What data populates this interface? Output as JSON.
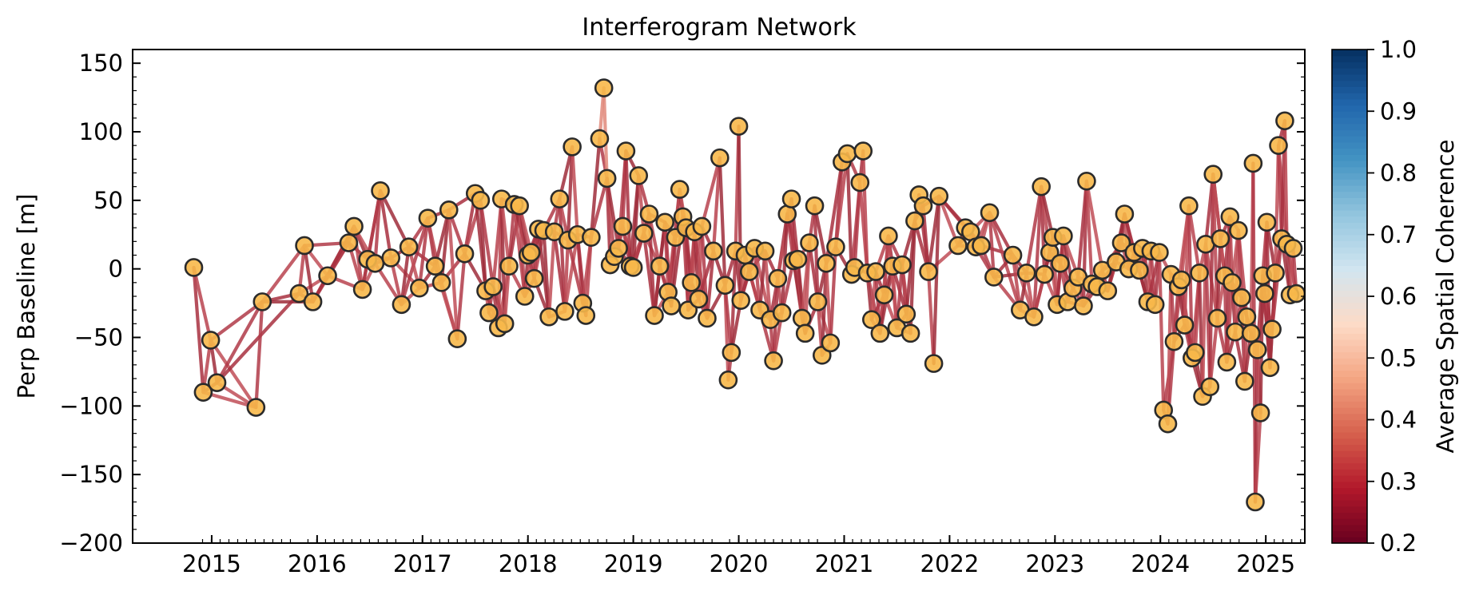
{
  "chart_data": {
    "type": "scatter",
    "title": "Interferogram Network",
    "xlabel": "",
    "ylabel": "Perp Baseline [m]",
    "xlim": [
      2014.4,
      2025.0
    ],
    "ylim": [
      -200,
      160
    ],
    "xticks": [
      2015,
      2016,
      2017,
      2018,
      2019,
      2020,
      2021,
      2022,
      2023,
      2024,
      2025
    ],
    "yticks": [
      -200,
      -150,
      -100,
      -50,
      0,
      50,
      100,
      150
    ],
    "xtick_labels": [
      "2015",
      "2016",
      "2017",
      "2018",
      "2019",
      "2020",
      "2021",
      "2022",
      "2023",
      "2024",
      "2025"
    ],
    "ytick_labels": [
      "−200",
      "−150",
      "−100",
      "−50",
      "0",
      "50",
      "100",
      "150"
    ],
    "grid": false,
    "colorbar": {
      "label": "Average Spatial Coherence",
      "range": [
        0.2,
        1.0
      ],
      "ticks": [
        "0.2",
        "0.3",
        "0.4",
        "0.5",
        "0.6",
        "0.7",
        "0.8",
        "0.9",
        "1.0"
      ],
      "colormap": "RdBu",
      "colors": [
        "#67001f",
        "#b2182b",
        "#d6604d",
        "#f4a582",
        "#fddbc7",
        "#d1e5f0",
        "#92c5de",
        "#4393c3",
        "#2166ac",
        "#053061"
      ]
    },
    "node_color": "#f7b84a",
    "edge_color": "#b03a48",
    "nodes": [
      [
        2014.83,
        1
      ],
      [
        2014.92,
        -90
      ],
      [
        2014.99,
        -52
      ],
      [
        2015.05,
        -83
      ],
      [
        2015.42,
        -101
      ],
      [
        2015.48,
        -24
      ],
      [
        2015.83,
        -18
      ],
      [
        2015.88,
        17
      ],
      [
        2015.96,
        -24
      ],
      [
        2016.1,
        -5
      ],
      [
        2016.3,
        19
      ],
      [
        2016.35,
        31
      ],
      [
        2016.43,
        -15
      ],
      [
        2016.48,
        7
      ],
      [
        2016.55,
        4
      ],
      [
        2016.6,
        57
      ],
      [
        2016.7,
        8
      ],
      [
        2016.8,
        -26
      ],
      [
        2016.87,
        16
      ],
      [
        2016.97,
        -14
      ],
      [
        2017.05,
        37
      ],
      [
        2017.12,
        2
      ],
      [
        2017.18,
        -10
      ],
      [
        2017.25,
        43
      ],
      [
        2017.33,
        -51
      ],
      [
        2017.4,
        11
      ],
      [
        2017.5,
        55
      ],
      [
        2017.55,
        50
      ],
      [
        2017.6,
        -16
      ],
      [
        2017.63,
        -32
      ],
      [
        2017.67,
        -13
      ],
      [
        2017.72,
        -43
      ],
      [
        2017.75,
        51
      ],
      [
        2017.78,
        -40
      ],
      [
        2017.82,
        2
      ],
      [
        2017.87,
        47
      ],
      [
        2017.92,
        46
      ],
      [
        2017.97,
        -20
      ],
      [
        2018.0,
        10
      ],
      [
        2018.03,
        12
      ],
      [
        2018.06,
        -7
      ],
      [
        2018.1,
        29
      ],
      [
        2018.15,
        28
      ],
      [
        2018.2,
        -35
      ],
      [
        2018.25,
        27
      ],
      [
        2018.3,
        51
      ],
      [
        2018.35,
        -31
      ],
      [
        2018.38,
        21
      ],
      [
        2018.42,
        89
      ],
      [
        2018.47,
        25
      ],
      [
        2018.52,
        -25
      ],
      [
        2018.55,
        -34
      ],
      [
        2018.6,
        23
      ],
      [
        2018.68,
        95
      ],
      [
        2018.72,
        132
      ],
      [
        2018.75,
        66
      ],
      [
        2018.78,
        3
      ],
      [
        2018.82,
        9
      ],
      [
        2018.86,
        15
      ],
      [
        2018.9,
        31
      ],
      [
        2018.93,
        86
      ],
      [
        2018.97,
        2
      ],
      [
        2019.0,
        1
      ],
      [
        2019.05,
        68
      ],
      [
        2019.1,
        26
      ],
      [
        2019.15,
        40
      ],
      [
        2019.2,
        -34
      ],
      [
        2019.25,
        2
      ],
      [
        2019.3,
        34
      ],
      [
        2019.33,
        -17
      ],
      [
        2019.36,
        -27
      ],
      [
        2019.4,
        23
      ],
      [
        2019.44,
        58
      ],
      [
        2019.47,
        38
      ],
      [
        2019.5,
        30
      ],
      [
        2019.52,
        -30
      ],
      [
        2019.55,
        -10
      ],
      [
        2019.58,
        27
      ],
      [
        2019.62,
        -22
      ],
      [
        2019.65,
        31
      ],
      [
        2019.7,
        -36
      ],
      [
        2019.76,
        13
      ],
      [
        2019.82,
        81
      ],
      [
        2019.87,
        -12
      ],
      [
        2019.9,
        -81
      ],
      [
        2019.93,
        -61
      ],
      [
        2019.97,
        13
      ],
      [
        2020.0,
        104
      ],
      [
        2020.02,
        -23
      ],
      [
        2020.06,
        10
      ],
      [
        2020.1,
        -2
      ],
      [
        2020.15,
        15
      ],
      [
        2020.2,
        -30
      ],
      [
        2020.25,
        13
      ],
      [
        2020.3,
        -37
      ],
      [
        2020.33,
        -67
      ],
      [
        2020.37,
        -7
      ],
      [
        2020.41,
        -32
      ],
      [
        2020.46,
        40
      ],
      [
        2020.5,
        51
      ],
      [
        2020.52,
        6
      ],
      [
        2020.56,
        7
      ],
      [
        2020.6,
        -36
      ],
      [
        2020.63,
        -47
      ],
      [
        2020.67,
        19
      ],
      [
        2020.72,
        46
      ],
      [
        2020.75,
        -24
      ],
      [
        2020.79,
        -63
      ],
      [
        2020.83,
        4
      ],
      [
        2020.87,
        -54
      ],
      [
        2020.92,
        16
      ],
      [
        2020.98,
        78
      ],
      [
        2021.03,
        84
      ],
      [
        2021.07,
        -4
      ],
      [
        2021.1,
        1
      ],
      [
        2021.15,
        63
      ],
      [
        2021.18,
        86
      ],
      [
        2021.22,
        -3
      ],
      [
        2021.26,
        -37
      ],
      [
        2021.3,
        -2
      ],
      [
        2021.34,
        -47
      ],
      [
        2021.38,
        -19
      ],
      [
        2021.42,
        24
      ],
      [
        2021.46,
        2
      ],
      [
        2021.5,
        -43
      ],
      [
        2021.55,
        3
      ],
      [
        2021.59,
        -33
      ],
      [
        2021.63,
        -47
      ],
      [
        2021.67,
        35
      ],
      [
        2021.71,
        54
      ],
      [
        2021.75,
        46
      ],
      [
        2021.8,
        -2
      ],
      [
        2021.85,
        -69
      ],
      [
        2021.9,
        53
      ],
      [
        2022.08,
        17
      ],
      [
        2022.15,
        30
      ],
      [
        2022.2,
        27
      ],
      [
        2022.25,
        16
      ],
      [
        2022.3,
        17
      ],
      [
        2022.38,
        41
      ],
      [
        2022.42,
        -6
      ],
      [
        2022.6,
        10
      ],
      [
        2022.67,
        -30
      ],
      [
        2022.73,
        -3
      ],
      [
        2022.8,
        -35
      ],
      [
        2022.87,
        60
      ],
      [
        2022.9,
        -4
      ],
      [
        2022.95,
        12
      ],
      [
        2022.98,
        23
      ],
      [
        2023.02,
        -26
      ],
      [
        2023.05,
        4
      ],
      [
        2023.08,
        24
      ],
      [
        2023.12,
        -24
      ],
      [
        2023.17,
        -14
      ],
      [
        2023.22,
        -6
      ],
      [
        2023.27,
        -27
      ],
      [
        2023.3,
        64
      ],
      [
        2023.35,
        -11
      ],
      [
        2023.4,
        -13
      ],
      [
        2023.45,
        -1
      ],
      [
        2023.5,
        -16
      ],
      [
        2023.58,
        5
      ],
      [
        2023.63,
        19
      ],
      [
        2023.66,
        40
      ],
      [
        2023.7,
        0
      ],
      [
        2023.75,
        12
      ],
      [
        2023.8,
        -1
      ],
      [
        2023.83,
        15
      ],
      [
        2023.88,
        -24
      ],
      [
        2023.91,
        13
      ],
      [
        2023.95,
        -26
      ],
      [
        2023.99,
        12
      ],
      [
        2024.03,
        -103
      ],
      [
        2024.07,
        -113
      ],
      [
        2024.1,
        -4
      ],
      [
        2024.13,
        -53
      ],
      [
        2024.17,
        -13
      ],
      [
        2024.2,
        -8
      ],
      [
        2024.23,
        -41
      ],
      [
        2024.27,
        46
      ],
      [
        2024.3,
        -65
      ],
      [
        2024.33,
        -61
      ],
      [
        2024.37,
        -3
      ],
      [
        2024.4,
        -93
      ],
      [
        2024.43,
        18
      ],
      [
        2024.47,
        -86
      ],
      [
        2024.5,
        69
      ],
      [
        2024.54,
        -36
      ],
      [
        2024.57,
        22
      ],
      [
        2024.61,
        -5
      ],
      [
        2024.63,
        -68
      ],
      [
        2024.66,
        38
      ],
      [
        2024.68,
        -10
      ],
      [
        2024.71,
        -46
      ],
      [
        2024.74,
        28
      ],
      [
        2024.77,
        -21
      ],
      [
        2024.8,
        -82
      ],
      [
        2024.82,
        -35
      ],
      [
        2024.86,
        -47
      ],
      [
        2024.88,
        77
      ],
      [
        2024.9,
        -170
      ],
      [
        2024.92,
        -59
      ],
      [
        2024.95,
        -105
      ],
      [
        2024.97,
        -5
      ],
      [
        2024.99,
        -18
      ],
      [
        2025.01,
        34
      ],
      [
        2025.04,
        -72
      ],
      [
        2025.06,
        -44
      ],
      [
        2025.09,
        -3
      ],
      [
        2025.12,
        90
      ],
      [
        2025.15,
        22
      ],
      [
        2025.18,
        108
      ],
      [
        2025.2,
        18
      ],
      [
        2025.23,
        -19
      ],
      [
        2025.26,
        15
      ],
      [
        2025.29,
        -18
      ]
    ]
  }
}
